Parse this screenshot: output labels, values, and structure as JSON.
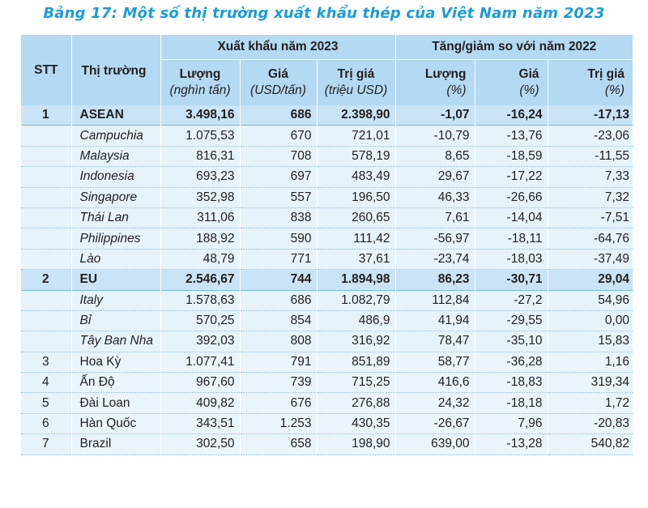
{
  "title": "Bảng 17: Một số thị trường xuất khẩu thép của Việt Nam năm 2023",
  "header": {
    "stt": "STT",
    "market": "Thị trường",
    "group_2023": "Xuất khẩu năm 2023",
    "group_change": "Tăng/giảm so với năm 2022",
    "columns": [
      {
        "label": "Lượng",
        "unit": "(nghìn tấn)"
      },
      {
        "label": "Giá",
        "unit": "(USD/tấn)"
      },
      {
        "label": "Trị giá",
        "unit": "(triệu USD)"
      },
      {
        "label": "Lượng",
        "unit": "(%)"
      },
      {
        "label": "Giá",
        "unit": "(%)"
      },
      {
        "label": "Trị giá",
        "unit": "(%)"
      }
    ]
  },
  "rows": [
    {
      "stt": "1",
      "name": "ASEAN",
      "v": [
        "3.498,16",
        "686",
        "2.398,90",
        "-1,07",
        "-16,24",
        "-17,13"
      ]
    },
    {
      "stt": "",
      "name": "Campuchia",
      "v": [
        "1.075,53",
        "670",
        "721,01",
        "-10,79",
        "-13,76",
        "-23,06"
      ]
    },
    {
      "stt": "",
      "name": "Malaysia",
      "v": [
        "816,31",
        "708",
        "578,19",
        "8,65",
        "-18,59",
        "-11,55"
      ]
    },
    {
      "stt": "",
      "name": "Indonesia",
      "v": [
        "693,23",
        "697",
        "483,49",
        "29,67",
        "-17,22",
        "7,33"
      ]
    },
    {
      "stt": "",
      "name": "Singapore",
      "v": [
        "352,98",
        "557",
        "196,50",
        "46,33",
        "-26,66",
        "7,32"
      ]
    },
    {
      "stt": "",
      "name": "Thái Lan",
      "v": [
        "311,06",
        "838",
        "260,65",
        "7,61",
        "-14,04",
        "-7,51"
      ]
    },
    {
      "stt": "",
      "name": "Philippines",
      "v": [
        "188,92",
        "590",
        "111,42",
        "-56,97",
        "-18,11",
        "-64,76"
      ]
    },
    {
      "stt": "",
      "name": "Lào",
      "v": [
        "48,79",
        "771",
        "37,61",
        "-23,74",
        "-18,03",
        "-37,49"
      ]
    },
    {
      "stt": "2",
      "name": "EU",
      "v": [
        "2.546,67",
        "744",
        "1.894,98",
        "86,23",
        "-30,71",
        "29,04"
      ]
    },
    {
      "stt": "",
      "name": "Italy",
      "v": [
        "1.578,63",
        "686",
        "1.082,79",
        "112,84",
        "-27,2",
        "54,96"
      ]
    },
    {
      "stt": "",
      "name": "Bỉ",
      "v": [
        "570,25",
        "854",
        "486,9",
        "41,94",
        "-29,55",
        "0,00"
      ]
    },
    {
      "stt": "",
      "name": "Tây Ban Nha",
      "v": [
        "392,03",
        "808",
        "316,92",
        "78,47",
        "-35,10",
        "15,83"
      ]
    },
    {
      "stt": "3",
      "name": "Hoa Kỳ",
      "v": [
        "1.077,41",
        "791",
        "851,89",
        "58,77",
        "-36,28",
        "1,16"
      ]
    },
    {
      "stt": "4",
      "name": "Ấn Độ",
      "v": [
        "967,60",
        "739",
        "715,25",
        "416,6",
        "-18,83",
        "319,34"
      ]
    },
    {
      "stt": "5",
      "name": "Đài Loan",
      "v": [
        "409,82",
        "676",
        "276,88",
        "24,32",
        "-18,18",
        "1,72"
      ]
    },
    {
      "stt": "6",
      "name": "Hàn Quốc",
      "v": [
        "343,51",
        "1.253",
        "430,35",
        "-26,67",
        "7,96",
        "-20,83"
      ]
    },
    {
      "stt": "7",
      "name": "Brazil",
      "v": [
        "302,50",
        "658",
        "198,90",
        "639,00",
        "-13,28",
        "540,82"
      ]
    }
  ]
}
